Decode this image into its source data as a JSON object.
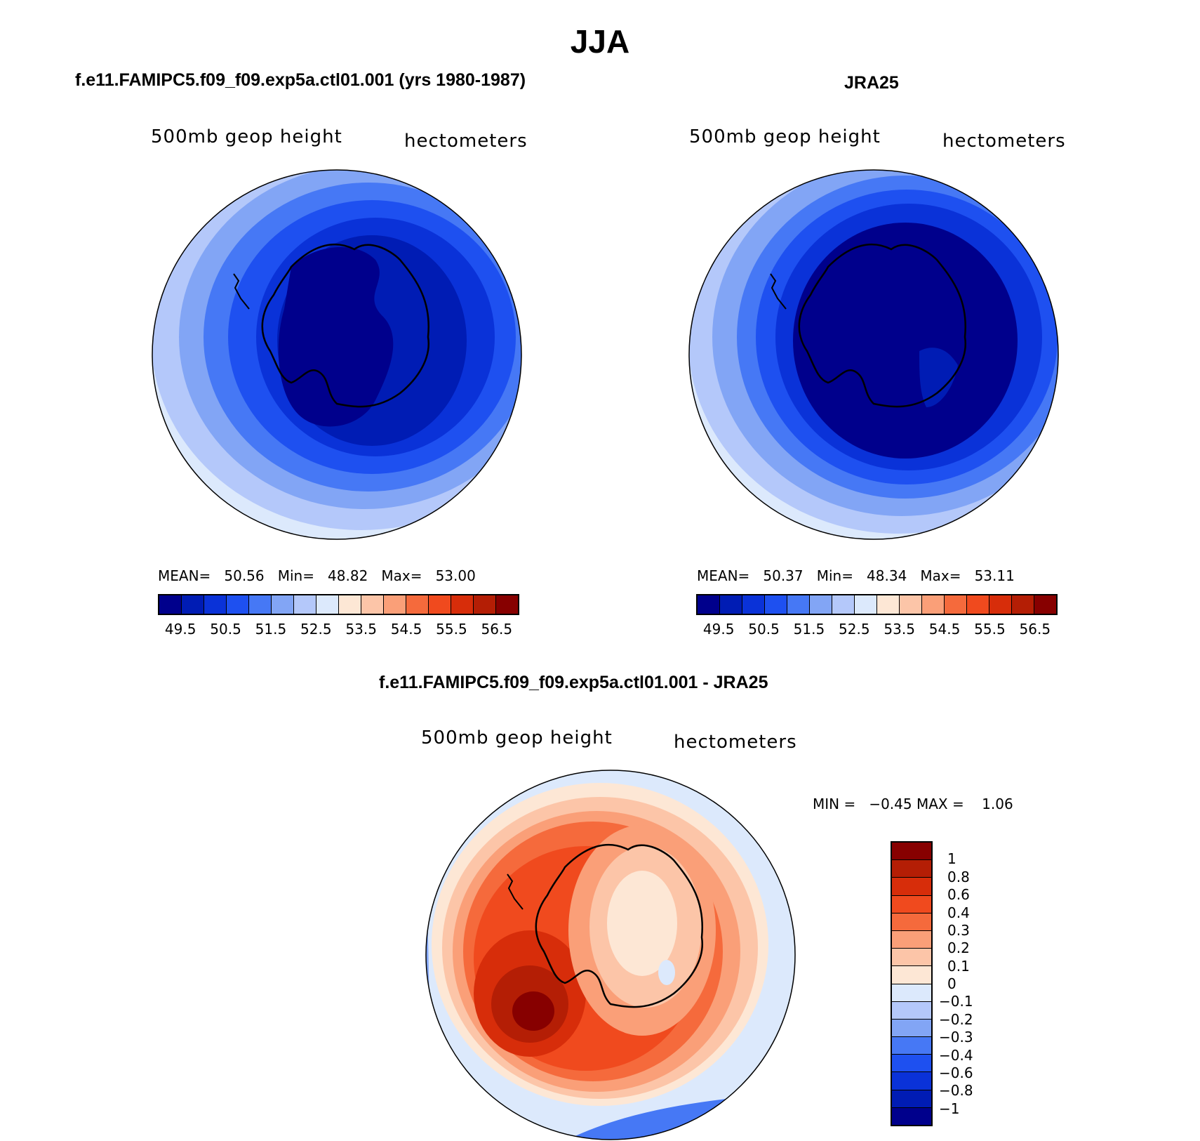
{
  "title": "JJA",
  "panels": {
    "model": {
      "title": "f.e11.FAMIPC5.f09_f09.exp5a.ctl01.001 (yrs 1980-1987)",
      "variable": "500mb geop height",
      "units": "hectometers",
      "mean_label": "MEAN=",
      "mean": "50.56",
      "min_label": "Min=",
      "min": "48.82",
      "max_label": "Max=",
      "max": "53.00"
    },
    "obs": {
      "title": "JRA25",
      "variable": "500mb geop height",
      "units": "hectometers",
      "mean_label": "MEAN=",
      "mean": "50.37",
      "min_label": "Min=",
      "min": "48.34",
      "max_label": "Max=",
      "max": "53.11"
    },
    "diff": {
      "title": "f.e11.FAMIPC5.f09_f09.exp5a.ctl01.001 - JRA25",
      "variable": "500mb geop height",
      "units": "hectometers",
      "min_label": "MIN =",
      "min": "−0.45",
      "max_label": "MAX =",
      "max": "1.06"
    }
  },
  "abs_colorbar": {
    "colors": [
      "#00008c",
      "#001cb4",
      "#0a32d8",
      "#1e50f0",
      "#4678f5",
      "#82a5f5",
      "#b4c8fa",
      "#dce9fc",
      "#fde7d5",
      "#fcc5a8",
      "#fa9f78",
      "#f56a3c",
      "#f04a1e",
      "#d72d0a",
      "#b41e05",
      "#870000"
    ],
    "ticks": [
      "49.5",
      "50.5",
      "51.5",
      "52.5",
      "53.5",
      "54.5",
      "55.5",
      "56.5"
    ]
  },
  "diff_colorbar": {
    "colors": [
      "#870000",
      "#b41e05",
      "#d72d0a",
      "#f04a1e",
      "#f56a3c",
      "#fa9f78",
      "#fcc5a8",
      "#fde7d5",
      "#dce9fc",
      "#b4c8fa",
      "#82a5f5",
      "#4678f5",
      "#1e50f0",
      "#0a32d8",
      "#001cb4",
      "#00008c"
    ],
    "ticks": [
      "1",
      "0.8",
      "0.6",
      "0.4",
      "0.3",
      "0.2",
      "0.1",
      "0",
      "−0.1",
      "−0.2",
      "−0.3",
      "−0.4",
      "−0.6",
      "−0.8",
      "−1"
    ]
  }
}
